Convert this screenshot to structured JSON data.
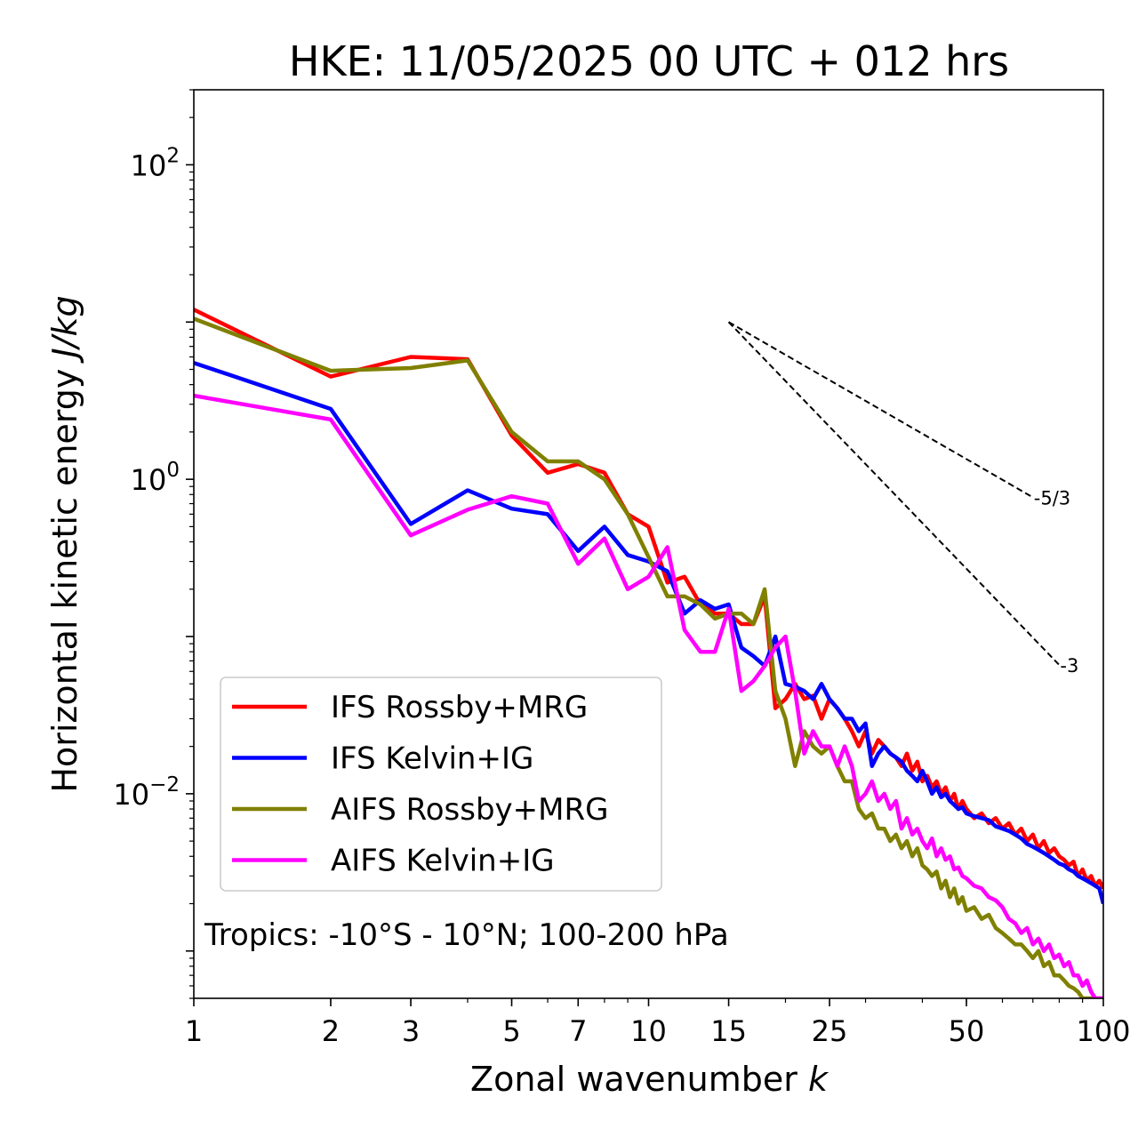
{
  "chart_data": {
    "type": "line",
    "title": "HKE: 11/05/2025 00 UTC + 012 hrs",
    "xlabel": "Zonal wavenumber ",
    "xlabel_var": "k",
    "ylabel": "Horizontal kinetic energy ",
    "ylabel_units": "J/kg",
    "x_scale": "log",
    "y_scale": "log",
    "xlim": [
      1,
      100
    ],
    "ylim": [
      0.0005,
      300
    ],
    "x_ticks": [
      {
        "value": 1,
        "label": "1"
      },
      {
        "value": 2,
        "label": "2"
      },
      {
        "value": 3,
        "label": "3"
      },
      {
        "value": 5,
        "label": "5"
      },
      {
        "value": 7,
        "label": "7"
      },
      {
        "value": 10,
        "label": "10"
      },
      {
        "value": 15,
        "label": "15"
      },
      {
        "value": 25,
        "label": "25"
      },
      {
        "value": 50,
        "label": "50"
      },
      {
        "value": 100,
        "label": "100"
      }
    ],
    "y_ticks": [
      {
        "value": 0.01,
        "base": "10",
        "exp": "−2"
      },
      {
        "value": 1,
        "base": "10",
        "exp": "0"
      },
      {
        "value": 100,
        "base": "10",
        "exp": "2"
      }
    ],
    "annotation": "Tropics: -10°S - 10°N; 100-200 hPa",
    "legend_position": "lower-left",
    "reference_slopes": [
      {
        "label": "-5/3",
        "slope": -1.6667,
        "x_start": 15,
        "x_end": 70,
        "y_start": 10.0
      },
      {
        "label": "-3",
        "slope": -3,
        "x_start": 15,
        "x_end": 80,
        "y_start": 10.0
      }
    ],
    "series": [
      {
        "name": "IFS Rossby+MRG",
        "color": "#ff0000",
        "x": [
          1,
          2,
          3,
          4,
          5,
          6,
          7,
          8,
          9,
          10,
          11,
          12,
          13,
          14,
          15,
          16,
          17,
          18,
          19,
          20,
          21,
          22,
          23,
          24,
          25,
          26,
          27,
          28,
          29,
          30,
          31,
          32,
          33,
          34,
          35,
          36,
          37,
          38,
          39,
          40,
          41,
          42,
          43,
          44,
          45,
          46,
          47,
          48,
          49,
          50,
          52,
          54,
          56,
          58,
          60,
          62,
          64,
          66,
          68,
          70,
          72,
          74,
          76,
          78,
          80,
          82,
          84,
          86,
          88,
          90,
          92,
          94,
          96,
          98,
          100
        ],
        "y": [
          12.0,
          4.5,
          6.0,
          5.8,
          1.9,
          1.1,
          1.25,
          1.1,
          0.6,
          0.5,
          0.22,
          0.24,
          0.16,
          0.14,
          0.14,
          0.12,
          0.12,
          0.18,
          0.035,
          0.04,
          0.05,
          0.04,
          0.042,
          0.03,
          0.04,
          0.035,
          0.03,
          0.025,
          0.02,
          0.025,
          0.018,
          0.022,
          0.02,
          0.018,
          0.017,
          0.015,
          0.018,
          0.014,
          0.016,
          0.012,
          0.013,
          0.011,
          0.012,
          0.01,
          0.011,
          0.009,
          0.01,
          0.008,
          0.009,
          0.008,
          0.007,
          0.0075,
          0.0065,
          0.007,
          0.006,
          0.0065,
          0.0055,
          0.006,
          0.005,
          0.0055,
          0.0045,
          0.005,
          0.0042,
          0.0045,
          0.004,
          0.0038,
          0.0035,
          0.0037,
          0.003,
          0.0033,
          0.0028,
          0.003,
          0.0026,
          0.0028,
          0.0025
        ]
      },
      {
        "name": "IFS Kelvin+IG",
        "color": "#0000ff",
        "x": [
          1,
          2,
          3,
          4,
          5,
          6,
          7,
          8,
          9,
          10,
          11,
          12,
          13,
          14,
          15,
          16,
          17,
          18,
          19,
          20,
          21,
          22,
          23,
          24,
          25,
          26,
          27,
          28,
          29,
          30,
          31,
          32,
          33,
          34,
          35,
          36,
          37,
          38,
          39,
          40,
          41,
          42,
          43,
          44,
          45,
          46,
          47,
          48,
          49,
          50,
          52,
          54,
          56,
          58,
          60,
          62,
          64,
          66,
          68,
          70,
          72,
          74,
          76,
          78,
          80,
          82,
          84,
          86,
          88,
          90,
          92,
          94,
          96,
          98,
          100
        ],
        "y": [
          5.5,
          2.8,
          0.52,
          0.85,
          0.65,
          0.6,
          0.35,
          0.5,
          0.33,
          0.3,
          0.26,
          0.14,
          0.17,
          0.15,
          0.16,
          0.085,
          0.075,
          0.065,
          0.1,
          0.05,
          0.048,
          0.045,
          0.04,
          0.05,
          0.04,
          0.035,
          0.03,
          0.03,
          0.025,
          0.028,
          0.015,
          0.018,
          0.02,
          0.018,
          0.017,
          0.016,
          0.014,
          0.013,
          0.012,
          0.014,
          0.012,
          0.01,
          0.011,
          0.0095,
          0.01,
          0.009,
          0.0085,
          0.008,
          0.0082,
          0.0075,
          0.0072,
          0.007,
          0.0068,
          0.0062,
          0.006,
          0.0058,
          0.0055,
          0.0052,
          0.0048,
          0.0046,
          0.0044,
          0.0042,
          0.004,
          0.0038,
          0.0036,
          0.0035,
          0.0033,
          0.0032,
          0.003,
          0.0029,
          0.0028,
          0.0027,
          0.0026,
          0.0025,
          0.002
        ]
      },
      {
        "name": "AIFS Rossby+MRG",
        "color": "#808000",
        "x": [
          1,
          2,
          3,
          4,
          5,
          6,
          7,
          8,
          9,
          10,
          11,
          12,
          13,
          14,
          15,
          16,
          17,
          18,
          19,
          20,
          21,
          22,
          23,
          24,
          25,
          26,
          27,
          28,
          29,
          30,
          31,
          32,
          33,
          34,
          35,
          36,
          37,
          38,
          39,
          40,
          41,
          42,
          43,
          44,
          45,
          46,
          47,
          48,
          49,
          50,
          52,
          54,
          56,
          58,
          60,
          62,
          64,
          66,
          68,
          70,
          72,
          74,
          76,
          78,
          80,
          82,
          84,
          86,
          88,
          90,
          92,
          94,
          96,
          98,
          100
        ],
        "y": [
          10.5,
          4.9,
          5.1,
          5.7,
          2.0,
          1.3,
          1.3,
          1.0,
          0.6,
          0.32,
          0.18,
          0.18,
          0.16,
          0.13,
          0.14,
          0.14,
          0.12,
          0.2,
          0.045,
          0.03,
          0.015,
          0.025,
          0.02,
          0.018,
          0.02,
          0.015,
          0.012,
          0.012,
          0.008,
          0.007,
          0.0075,
          0.006,
          0.006,
          0.005,
          0.0055,
          0.0045,
          0.005,
          0.004,
          0.0045,
          0.0035,
          0.0033,
          0.003,
          0.0032,
          0.0025,
          0.0028,
          0.0022,
          0.0025,
          0.002,
          0.0022,
          0.0018,
          0.0019,
          0.0016,
          0.0017,
          0.0014,
          0.0013,
          0.0012,
          0.0011,
          0.0011,
          0.001,
          0.0009,
          0.001,
          0.0008,
          0.00085,
          0.0007,
          0.0007,
          0.00065,
          0.0006,
          0.00058,
          0.00055,
          0.0005,
          0.0005,
          0.0005,
          0.0005,
          0.0005,
          0.0005
        ]
      },
      {
        "name": "AIFS Kelvin+IG",
        "color": "#ff00ff",
        "x": [
          1,
          2,
          3,
          4,
          5,
          6,
          7,
          8,
          9,
          10,
          11,
          12,
          13,
          14,
          15,
          16,
          17,
          18,
          19,
          20,
          21,
          22,
          23,
          24,
          25,
          26,
          27,
          28,
          29,
          30,
          31,
          32,
          33,
          34,
          35,
          36,
          37,
          38,
          39,
          40,
          41,
          42,
          43,
          44,
          45,
          46,
          47,
          48,
          49,
          50,
          52,
          54,
          56,
          58,
          60,
          62,
          64,
          66,
          68,
          70,
          72,
          74,
          76,
          78,
          80,
          82,
          84,
          86,
          88,
          90,
          92,
          94,
          96,
          98,
          100
        ],
        "y": [
          3.4,
          2.4,
          0.44,
          0.64,
          0.78,
          0.7,
          0.29,
          0.42,
          0.2,
          0.24,
          0.37,
          0.11,
          0.08,
          0.08,
          0.15,
          0.045,
          0.052,
          0.065,
          0.085,
          0.1,
          0.045,
          0.018,
          0.025,
          0.02,
          0.02,
          0.015,
          0.02,
          0.015,
          0.009,
          0.01,
          0.012,
          0.009,
          0.01,
          0.008,
          0.009,
          0.006,
          0.007,
          0.0055,
          0.006,
          0.005,
          0.0045,
          0.0052,
          0.004,
          0.0045,
          0.0038,
          0.004,
          0.0033,
          0.0034,
          0.003,
          0.0029,
          0.0026,
          0.0025,
          0.0022,
          0.0021,
          0.0019,
          0.0016,
          0.0015,
          0.0013,
          0.0014,
          0.0011,
          0.0012,
          0.001,
          0.0011,
          0.0009,
          0.00095,
          0.0008,
          0.00085,
          0.0007,
          0.0007,
          0.0006,
          0.00065,
          0.00055,
          0.0005,
          0.0005,
          0.0005
        ]
      }
    ]
  }
}
